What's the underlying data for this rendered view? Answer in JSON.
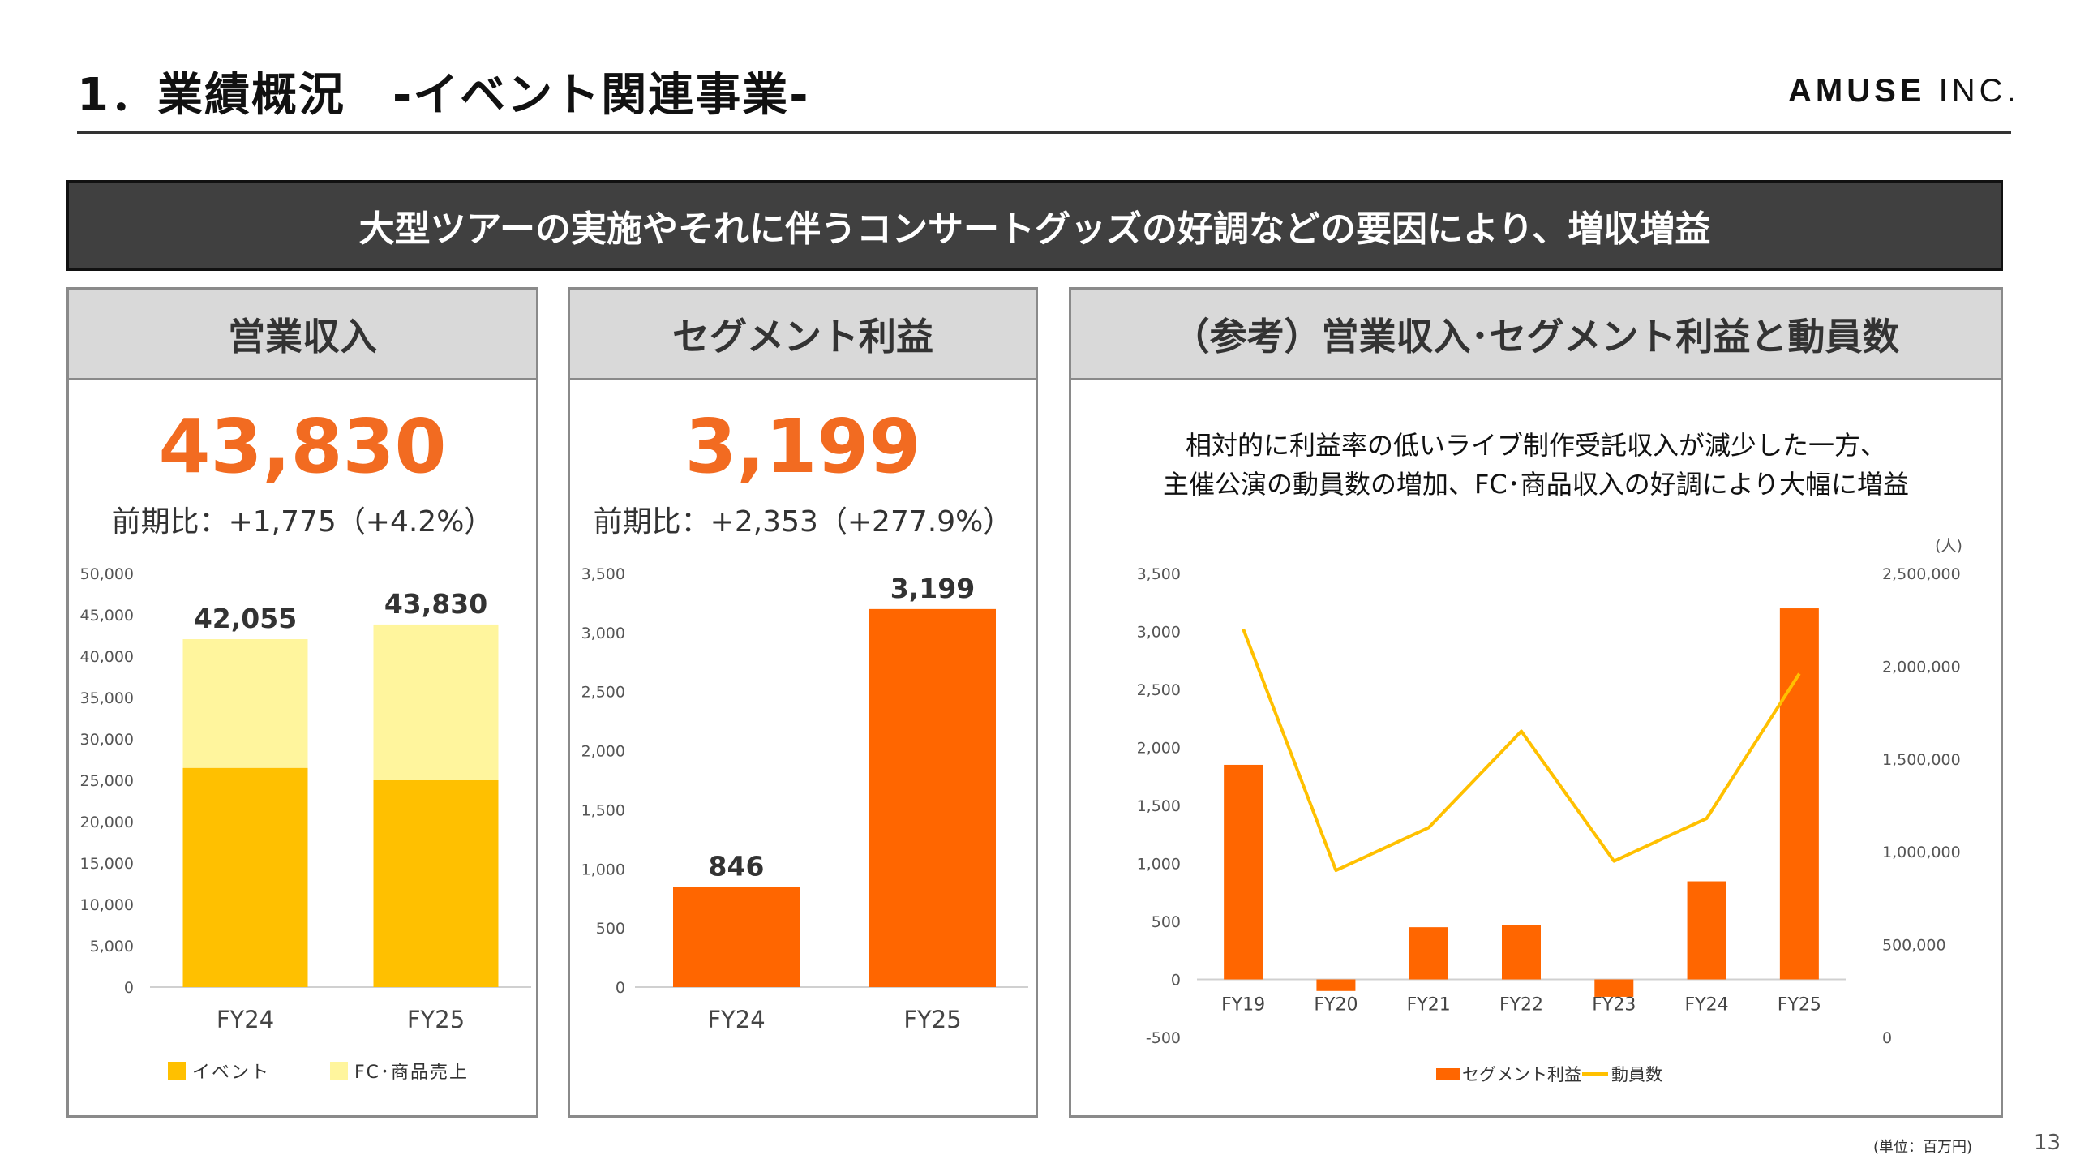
{
  "header": {
    "title": "1．業績概況　-イベント関連事業-",
    "logo_main": "AMUSE",
    "logo_sub": "INC."
  },
  "banner": {
    "text": "大型ツアーの実施やそれに伴うコンサートグッズの好調などの要因により、増収増益"
  },
  "panels": {
    "revenue": {
      "title": "営業収入",
      "value": "43,830",
      "comparison": "前期比：+1,775（+4.2%）"
    },
    "profit": {
      "title": "セグメント利益",
      "value": "3,199",
      "comparison": "前期比：+2,353（+277.9%）"
    },
    "reference": {
      "title": "（参考）営業収入･セグメント利益と動員数",
      "desc_line1": "相対的に利益率の低いライブ制作受託収入が減少した一方、",
      "desc_line2": "主催公演の動員数の増加、FC･商品収入の好調により大幅に増益"
    }
  },
  "footer": {
    "unit_note": "(単位：百万円)",
    "page_number": "13"
  },
  "colors": {
    "accent": "#f26b21",
    "event": "#ffc000",
    "fc": "#fff59d",
    "profit_bar": "#ff6600",
    "line": "#ffc000"
  },
  "chart_data": [
    {
      "type": "bar",
      "stacked": true,
      "categories": [
        "FY24",
        "FY25"
      ],
      "series": [
        {
          "name": "イベント",
          "values": [
            26500,
            25000
          ]
        },
        {
          "name": "FC･商品売上",
          "values": [
            15555,
            18830
          ]
        }
      ],
      "totals": [
        "42,055",
        "43,830"
      ],
      "y_ticks": [
        "0",
        "5,000",
        "10,000",
        "15,000",
        "20,000",
        "25,000",
        "30,000",
        "35,000",
        "40,000",
        "45,000",
        "50,000"
      ],
      "ylim": [
        0,
        50000
      ],
      "legend": "bottom"
    },
    {
      "type": "bar",
      "categories": [
        "FY24",
        "FY25"
      ],
      "values": [
        846,
        3199
      ],
      "data_labels": [
        "846",
        "3,199"
      ],
      "y_ticks": [
        "0",
        "500",
        "1,000",
        "1,500",
        "2,000",
        "2,500",
        "3,000",
        "3,500"
      ],
      "ylim": [
        0,
        3500
      ]
    },
    {
      "type": "bar",
      "combo": "bar+line",
      "categories": [
        "FY19",
        "FY20",
        "FY21",
        "FY22",
        "FY23",
        "FY24",
        "FY25"
      ],
      "series": [
        {
          "name": "セグメント利益",
          "type": "bar",
          "axis": "left",
          "values": [
            1850,
            -100,
            450,
            470,
            -150,
            846,
            3199
          ]
        },
        {
          "name": "動員数",
          "type": "line",
          "axis": "right",
          "values": [
            2200000,
            900000,
            1130000,
            1650000,
            950000,
            1180000,
            1960000
          ]
        }
      ],
      "y_ticks": [
        "-500",
        "0",
        "500",
        "1,000",
        "1,500",
        "2,000",
        "2,500",
        "3,000",
        "3,500"
      ],
      "y2_ticks": [
        "0",
        "500,000",
        "1,000,000",
        "1,500,000",
        "2,000,000",
        "2,500,000"
      ],
      "y2_unit": "(人)",
      "ylim": [
        -500,
        3500
      ],
      "y2lim": [
        0,
        2500000
      ],
      "legend": "bottom"
    }
  ]
}
